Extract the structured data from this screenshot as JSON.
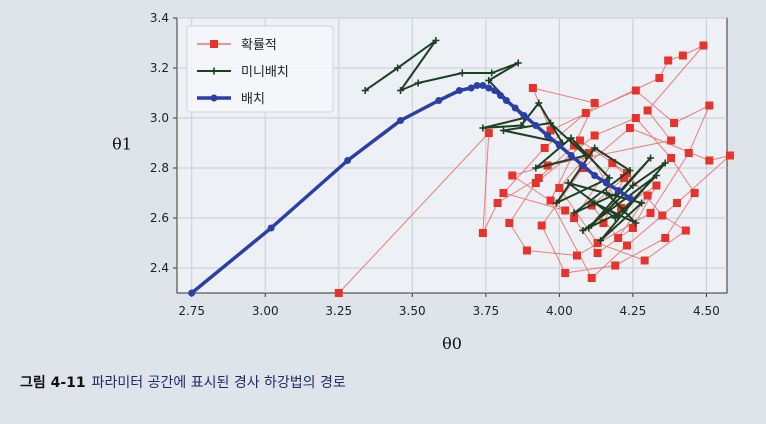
{
  "caption": {
    "figure_label": "그림 4-11",
    "text": "파라미터 공간에 표시된 경사 하강법의 경로"
  },
  "chart_data": {
    "type": "line",
    "xlabel": "θ0",
    "ylabel": "θ1",
    "xlim": [
      2.7,
      4.57
    ],
    "ylim": [
      2.3,
      3.4
    ],
    "xticks": [
      "2.75",
      "3.00",
      "3.25",
      "3.50",
      "3.75",
      "4.00",
      "4.25",
      "4.50"
    ],
    "yticks": [
      "2.4",
      "2.6",
      "2.8",
      "3.0",
      "3.2",
      "3.4"
    ],
    "grid": true,
    "legend_position": "top-left",
    "series": [
      {
        "name": "확률적",
        "color": "#e8332b",
        "marker": "square",
        "x": [
          3.25,
          3.76,
          3.74,
          3.79,
          3.93,
          4.05,
          4.12,
          3.91,
          3.97,
          4.34,
          4.37,
          4.42,
          4.49,
          4.3,
          4.38,
          3.96,
          3.84,
          4.02,
          3.81,
          3.95,
          4.09,
          4.26,
          4.39,
          4.51,
          4.44,
          4.31,
          4.06,
          3.89,
          3.83,
          3.92,
          4.12,
          4.26,
          4.38,
          4.46,
          4.36,
          4.19,
          4.02,
          3.94,
          4.08,
          4.24,
          4.51,
          4.58,
          4.4,
          4.23,
          4.11,
          3.97,
          4.07,
          4.23,
          4.35,
          4.43,
          4.29,
          4.13,
          4.0,
          4.1,
          4.21,
          4.33,
          4.25,
          4.13,
          4.05,
          4.18,
          4.3,
          4.2,
          4.11,
          4.22,
          4.15
        ],
        "y": [
          2.3,
          2.94,
          2.54,
          2.66,
          2.76,
          2.89,
          3.06,
          3.12,
          2.95,
          3.16,
          3.23,
          3.25,
          3.29,
          3.03,
          2.91,
          2.81,
          2.77,
          2.63,
          2.7,
          2.88,
          3.02,
          3.11,
          2.98,
          3.05,
          2.86,
          2.62,
          2.45,
          2.47,
          2.58,
          2.74,
          2.93,
          3.0,
          2.84,
          2.7,
          2.52,
          2.41,
          2.38,
          2.57,
          2.8,
          2.96,
          2.83,
          2.85,
          2.66,
          2.49,
          2.36,
          2.67,
          2.91,
          2.78,
          2.61,
          2.55,
          2.43,
          2.5,
          2.72,
          2.86,
          2.64,
          2.73,
          2.56,
          2.46,
          2.6,
          2.82,
          2.69,
          2.52,
          2.65,
          2.76,
          2.58
        ]
      },
      {
        "name": "미니배치",
        "color": "#1d4022",
        "marker": "plus",
        "x": [
          3.34,
          3.45,
          3.58,
          3.46,
          3.52,
          3.67,
          3.77,
          3.86,
          3.76,
          3.88,
          3.74,
          3.87,
          3.93,
          4.01,
          3.81,
          3.97,
          4.09,
          3.92,
          4.04,
          4.17,
          3.99,
          4.12,
          4.24,
          4.05,
          4.2,
          4.31,
          4.1,
          4.25,
          4.36,
          4.14,
          4.28,
          4.03,
          4.19,
          4.33,
          4.08,
          4.22,
          4.16,
          4.26,
          4.12,
          4.2
        ],
        "y": [
          3.11,
          3.2,
          3.31,
          3.11,
          3.14,
          3.18,
          3.18,
          3.22,
          3.15,
          3.0,
          2.96,
          2.97,
          3.06,
          2.9,
          2.95,
          2.98,
          2.85,
          2.8,
          2.92,
          2.76,
          2.66,
          2.88,
          2.79,
          2.62,
          2.7,
          2.84,
          2.56,
          2.73,
          2.82,
          2.51,
          2.66,
          2.74,
          2.6,
          2.77,
          2.55,
          2.63,
          2.7,
          2.58,
          2.66,
          2.61
        ]
      },
      {
        "name": "배치",
        "color": "#2a3fa8",
        "marker": "circle",
        "x": [
          2.75,
          3.02,
          3.28,
          3.46,
          3.59,
          3.66,
          3.7,
          3.72,
          3.74,
          3.76,
          3.78,
          3.8,
          3.82,
          3.85,
          3.88,
          3.92,
          3.96,
          4.0,
          4.04,
          4.08,
          4.12,
          4.16,
          4.2,
          4.24
        ],
        "y": [
          2.3,
          2.56,
          2.83,
          2.99,
          3.07,
          3.11,
          3.12,
          3.13,
          3.13,
          3.12,
          3.11,
          3.09,
          3.07,
          3.04,
          3.01,
          2.97,
          2.93,
          2.89,
          2.85,
          2.81,
          2.77,
          2.74,
          2.71,
          2.68
        ]
      }
    ]
  }
}
